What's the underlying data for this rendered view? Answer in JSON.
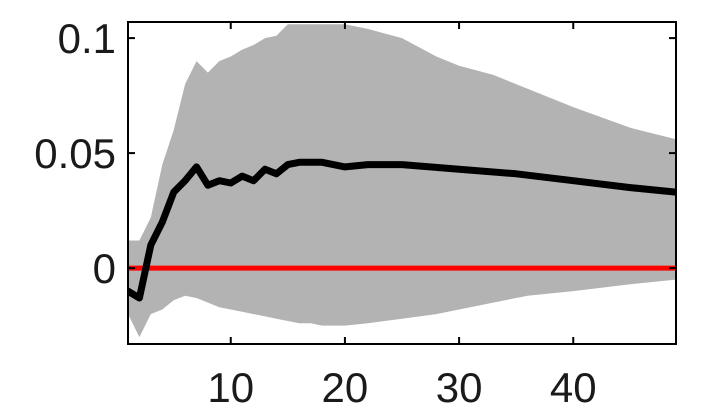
{
  "chart_data": {
    "type": "line",
    "title": "",
    "xlabel": "",
    "ylabel": "",
    "xlim": [
      1,
      49
    ],
    "ylim": [
      -0.033,
      0.107
    ],
    "grid": false,
    "x_ticks": [
      10,
      20,
      30,
      40
    ],
    "x_tick_labels": [
      "10",
      "20",
      "30",
      "40"
    ],
    "y_ticks": [
      0,
      0.05,
      0.1
    ],
    "y_tick_labels": [
      "0",
      "0.05",
      "0.1"
    ],
    "colors": {
      "band": "#b3b3b3",
      "line": "#000000",
      "zero_line": "#ff0000",
      "frame": "#000000"
    },
    "series": [
      {
        "role": "confidence-band",
        "x": [
          1,
          2,
          3,
          4,
          5,
          6,
          7,
          8,
          9,
          10,
          11,
          12,
          13,
          14,
          15,
          16,
          17,
          18,
          20,
          22,
          25,
          28,
          30,
          33,
          36,
          40,
          45,
          49
        ],
        "upper": [
          0.012,
          0.012,
          0.022,
          0.045,
          0.06,
          0.08,
          0.09,
          0.085,
          0.09,
          0.092,
          0.095,
          0.097,
          0.1,
          0.101,
          0.106,
          0.106,
          0.106,
          0.106,
          0.106,
          0.104,
          0.1,
          0.092,
          0.088,
          0.084,
          0.078,
          0.07,
          0.061,
          0.056
        ],
        "lower": [
          -0.02,
          -0.03,
          -0.02,
          -0.018,
          -0.014,
          -0.012,
          -0.013,
          -0.015,
          -0.017,
          -0.018,
          -0.019,
          -0.02,
          -0.021,
          -0.022,
          -0.023,
          -0.024,
          -0.024,
          -0.025,
          -0.025,
          -0.024,
          -0.022,
          -0.02,
          -0.018,
          -0.015,
          -0.012,
          -0.01,
          -0.007,
          -0.005
        ]
      },
      {
        "role": "point-estimate",
        "x": [
          1,
          2,
          3,
          4,
          5,
          6,
          7,
          8,
          9,
          10,
          11,
          12,
          13,
          14,
          15,
          16,
          17,
          18,
          20,
          22,
          25,
          30,
          35,
          40,
          45,
          49
        ],
        "values": [
          -0.01,
          -0.013,
          0.01,
          0.02,
          0.033,
          0.038,
          0.044,
          0.036,
          0.038,
          0.037,
          0.04,
          0.038,
          0.043,
          0.041,
          0.045,
          0.046,
          0.046,
          0.046,
          0.044,
          0.045,
          0.045,
          0.043,
          0.041,
          0.038,
          0.035,
          0.033
        ]
      },
      {
        "role": "zero-line",
        "values": [
          0,
          0
        ]
      }
    ]
  }
}
